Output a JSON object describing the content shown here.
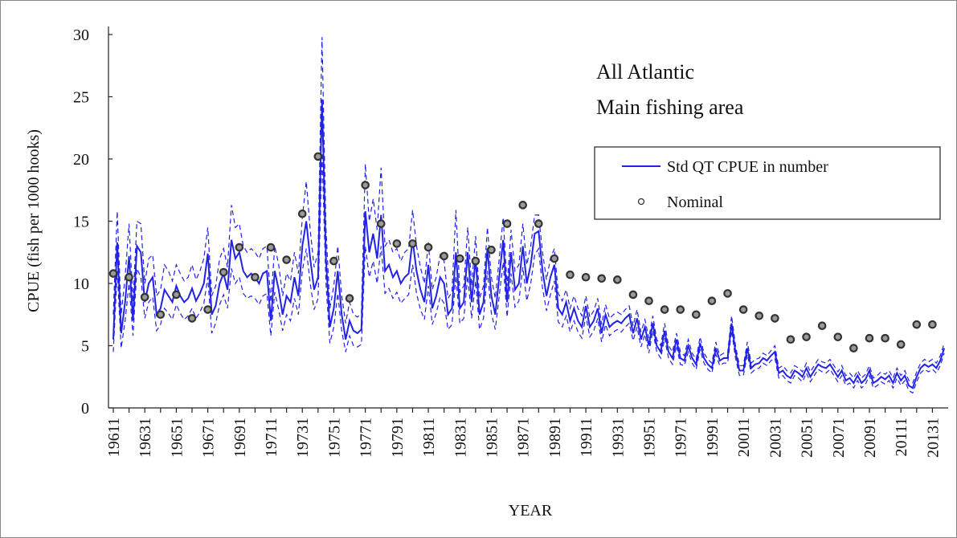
{
  "chart_data": {
    "type": "line",
    "annotations": [
      "All Atlantic",
      "Main fishing area"
    ],
    "xlabel": "YEAR",
    "ylabel": "CPUE (fish per 1000 hooks)",
    "ylim": [
      0,
      30
    ],
    "yticks": [
      0,
      5,
      10,
      15,
      20,
      25,
      30
    ],
    "grid": false,
    "legend": "upper right",
    "categories": [
      "19611",
      null,
      null,
      null,
      null,
      null,
      null,
      null,
      "19631",
      null,
      null,
      null,
      null,
      null,
      null,
      null,
      "19651",
      null,
      null,
      null,
      null,
      null,
      null,
      null,
      "19671",
      null,
      null,
      null,
      null,
      null,
      null,
      null,
      "19691",
      null,
      null,
      null,
      null,
      null,
      null,
      null,
      "19711",
      null,
      null,
      null,
      null,
      null,
      null,
      null,
      "19731",
      null,
      null,
      null,
      null,
      null,
      null,
      null,
      "19751",
      null,
      null,
      null,
      null,
      null,
      null,
      null,
      "19771",
      null,
      null,
      null,
      null,
      null,
      null,
      null,
      "19791",
      null,
      null,
      null,
      null,
      null,
      null,
      null,
      "19811",
      null,
      null,
      null,
      null,
      null,
      null,
      null,
      "19831",
      null,
      null,
      null,
      null,
      null,
      null,
      null,
      "19851",
      null,
      null,
      null,
      null,
      null,
      null,
      null,
      "19871",
      null,
      null,
      null,
      null,
      null,
      null,
      null,
      "19891",
      null,
      null,
      null,
      null,
      null,
      null,
      null,
      "19911",
      null,
      null,
      null,
      null,
      null,
      null,
      null,
      "19931",
      null,
      null,
      null,
      null,
      null,
      null,
      null,
      "19951",
      null,
      null,
      null,
      null,
      null,
      null,
      null,
      "19971",
      null,
      null,
      null,
      null,
      null,
      null,
      null,
      "19991",
      null,
      null,
      null,
      null,
      null,
      null,
      null,
      "20011",
      null,
      null,
      null,
      null,
      null,
      null,
      null,
      "20031",
      null,
      null,
      null,
      null,
      null,
      null,
      null,
      "20051",
      null,
      null,
      null,
      null,
      null,
      null,
      null,
      "20071",
      null,
      null,
      null,
      null,
      null,
      null,
      null,
      "20091",
      null,
      null,
      null,
      null,
      null,
      null,
      null,
      "20111",
      null,
      null,
      null,
      null,
      null,
      null,
      null,
      "20131",
      null,
      null,
      null
    ],
    "series": [
      {
        "name": "Std QT CPUE in number",
        "color": "#2222e6",
        "dash": false,
        "values": [
          5.5,
          13.3,
          6.0,
          8.5,
          12.2,
          7.0,
          13.0,
          12.5,
          8.5,
          10.0,
          10.5,
          7.5,
          8.0,
          9.5,
          9.0,
          8.5,
          9.8,
          9.0,
          8.5,
          8.8,
          9.6,
          8.6,
          9.2,
          10.0,
          12.4,
          7.5,
          8.2,
          10.0,
          10.8,
          9.5,
          13.5,
          12.0,
          12.5,
          11.0,
          10.5,
          10.8,
          10.5,
          10.0,
          10.8,
          11.0,
          7.0,
          11.0,
          9.5,
          7.5,
          9.0,
          8.5,
          10.5,
          9.0,
          13.0,
          15.0,
          12.0,
          9.5,
          10.5,
          24.8,
          12.0,
          6.5,
          8.0,
          11.0,
          7.5,
          5.5,
          7.0,
          6.2,
          6.0,
          6.3,
          15.8,
          12.5,
          14.0,
          12.0,
          15.5,
          11.0,
          11.5,
          10.5,
          11.0,
          10.0,
          10.5,
          10.8,
          13.5,
          11.0,
          9.5,
          8.5,
          11.5,
          8.0,
          9.0,
          10.5,
          10.0,
          7.5,
          8.0,
          12.5,
          8.0,
          8.5,
          12.5,
          8.5,
          12.0,
          7.5,
          8.5,
          12.8,
          9.0,
          7.5,
          10.5,
          13.5,
          8.5,
          12.5,
          9.5,
          10.0,
          13.0,
          10.0,
          11.5,
          14.0,
          14.2,
          11.0,
          9.0,
          10.5,
          11.5,
          8.0,
          7.5,
          8.5,
          7.0,
          8.0,
          7.0,
          6.5,
          8.2,
          6.5,
          7.0,
          8.0,
          6.0,
          7.5,
          6.5,
          6.8,
          7.0,
          6.8,
          7.2,
          7.5,
          6.0,
          7.2,
          5.5,
          6.5,
          5.0,
          6.8,
          5.0,
          4.5,
          6.2,
          4.5,
          4.0,
          5.5,
          4.0,
          3.8,
          5.0,
          4.0,
          3.5,
          5.2,
          4.0,
          3.5,
          3.2,
          4.8,
          3.8,
          4.0,
          4.0,
          6.8,
          4.5,
          3.0,
          3.0,
          4.8,
          3.2,
          3.5,
          3.6,
          4.0,
          3.8,
          4.2,
          4.5,
          2.8,
          3.0,
          2.6,
          2.4,
          3.0,
          2.8,
          2.5,
          3.2,
          2.5,
          3.0,
          3.5,
          3.3,
          3.2,
          3.5,
          3.0,
          2.5,
          3.0,
          2.2,
          2.4,
          2.0,
          2.6,
          2.0,
          2.3,
          3.0,
          2.0,
          2.2,
          2.5,
          2.3,
          2.6,
          2.0,
          2.8,
          2.2,
          2.6,
          1.8,
          1.6,
          2.5,
          3.2,
          3.5,
          3.3,
          3.5,
          3.2,
          3.8,
          4.8
        ]
      },
      {
        "color": "#2222e6",
        "dash": true,
        "values": [
          7.5,
          15.8,
          7.5,
          10.5,
          14.8,
          8.5,
          15.0,
          14.8,
          10.0,
          12.0,
          12.3,
          9.0,
          9.5,
          11.5,
          11.0,
          10.2,
          11.5,
          10.8,
          10.2,
          10.5,
          11.5,
          10.3,
          11.0,
          12.0,
          14.5,
          9.0,
          9.8,
          12.0,
          12.8,
          11.3,
          16.3,
          14.5,
          14.8,
          13.0,
          12.5,
          12.8,
          12.5,
          12.0,
          12.8,
          13.0,
          8.5,
          13.0,
          11.5,
          9.0,
          10.8,
          10.2,
          12.5,
          10.8,
          15.3,
          18.2,
          14.3,
          11.3,
          12.5,
          29.8,
          14.5,
          8.0,
          9.8,
          13.0,
          9.0,
          6.8,
          8.5,
          7.5,
          7.3,
          7.6,
          19.6,
          15.0,
          16.8,
          14.3,
          19.3,
          13.0,
          13.5,
          12.5,
          12.8,
          11.8,
          12.5,
          12.8,
          15.9,
          13.0,
          11.3,
          10.0,
          13.3,
          9.5,
          10.5,
          12.3,
          11.8,
          8.8,
          9.3,
          15.9,
          9.3,
          9.8,
          14.5,
          9.8,
          13.8,
          8.8,
          9.8,
          14.5,
          10.5,
          8.8,
          12.0,
          15.3,
          9.8,
          14.3,
          11.0,
          11.5,
          14.8,
          11.5,
          13.0,
          15.5,
          15.5,
          12.5,
          10.3,
          12.0,
          12.8,
          9.2,
          8.6,
          9.5,
          8.0,
          9.0,
          8.0,
          7.4,
          9.0,
          7.3,
          7.8,
          8.8,
          6.7,
          8.3,
          7.2,
          7.5,
          7.7,
          7.5,
          7.9,
          8.2,
          6.6,
          7.9,
          6.1,
          7.1,
          5.6,
          7.4,
          5.5,
          5.0,
          6.8,
          5.0,
          4.5,
          6.0,
          4.5,
          4.2,
          5.5,
          4.4,
          3.9,
          5.7,
          4.4,
          3.9,
          3.6,
          5.3,
          4.2,
          4.4,
          4.4,
          7.4,
          5.0,
          3.4,
          3.4,
          5.3,
          3.6,
          3.9,
          4.0,
          4.4,
          4.2,
          4.6,
          5.0,
          3.2,
          3.4,
          3.0,
          2.8,
          3.4,
          3.2,
          2.9,
          3.6,
          2.9,
          3.4,
          3.9,
          3.7,
          3.6,
          3.9,
          3.4,
          2.9,
          3.4,
          2.6,
          2.8,
          2.4,
          3.0,
          2.4,
          2.7,
          3.4,
          2.4,
          2.6,
          2.9,
          2.7,
          3.0,
          2.4,
          3.2,
          2.6,
          3.0,
          2.2,
          2.0,
          2.9,
          3.6,
          3.9,
          3.7,
          3.9,
          3.6,
          4.2,
          5.2
        ]
      },
      {
        "color": "#2222e6",
        "dash": true,
        "values": [
          4.5,
          11.0,
          4.8,
          7.0,
          10.0,
          5.8,
          11.2,
          10.5,
          7.2,
          8.5,
          8.9,
          6.2,
          6.7,
          8.0,
          7.6,
          7.1,
          8.3,
          7.6,
          7.1,
          7.4,
          8.0,
          7.2,
          7.7,
          8.4,
          10.5,
          6.0,
          6.8,
          8.3,
          9.1,
          8.0,
          11.2,
          10.0,
          10.5,
          9.2,
          8.8,
          9.0,
          8.8,
          8.3,
          9.0,
          9.2,
          5.8,
          9.3,
          7.9,
          6.2,
          7.5,
          7.0,
          8.8,
          7.5,
          11.0,
          12.8,
          10.0,
          7.9,
          8.8,
          20.5,
          10.0,
          5.2,
          6.5,
          9.2,
          6.2,
          4.5,
          5.8,
          5.0,
          4.9,
          5.1,
          13.0,
          10.5,
          11.8,
          10.0,
          13.0,
          9.2,
          9.6,
          8.8,
          9.3,
          8.4,
          8.8,
          9.1,
          11.5,
          9.2,
          7.9,
          7.1,
          9.8,
          6.7,
          7.6,
          8.9,
          8.4,
          6.3,
          6.7,
          10.6,
          6.8,
          7.2,
          10.6,
          7.2,
          10.2,
          6.3,
          7.2,
          11.0,
          7.6,
          6.3,
          9.0,
          11.7,
          7.3,
          10.8,
          8.1,
          8.6,
          11.3,
          8.6,
          10.0,
          12.3,
          12.8,
          9.6,
          7.8,
          9.1,
          10.2,
          6.9,
          6.5,
          7.4,
          6.1,
          7.0,
          6.1,
          5.6,
          7.4,
          5.7,
          6.2,
          7.2,
          5.3,
          6.7,
          5.8,
          6.1,
          6.3,
          6.1,
          6.5,
          6.8,
          5.4,
          6.5,
          4.9,
          5.9,
          4.4,
          6.2,
          4.5,
          4.0,
          5.6,
          4.0,
          3.5,
          5.0,
          3.5,
          3.4,
          4.5,
          3.6,
          3.1,
          4.7,
          3.6,
          3.1,
          2.8,
          4.3,
          3.4,
          3.6,
          3.6,
          6.2,
          4.0,
          2.6,
          2.6,
          4.3,
          2.8,
          3.1,
          3.2,
          3.6,
          3.4,
          3.8,
          4.0,
          2.4,
          2.6,
          2.2,
          2.0,
          2.6,
          2.4,
          2.1,
          2.8,
          2.1,
          2.6,
          3.1,
          2.9,
          2.8,
          3.1,
          2.6,
          2.1,
          2.6,
          1.8,
          2.0,
          1.6,
          2.2,
          1.6,
          1.9,
          2.6,
          1.6,
          1.8,
          2.1,
          1.9,
          2.2,
          1.6,
          2.4,
          1.8,
          2.2,
          1.4,
          1.2,
          2.1,
          2.8,
          3.1,
          2.9,
          3.1,
          2.8,
          3.4,
          4.4
        ]
      },
      {
        "name": "Nominal",
        "color": "#333333",
        "marker": "circle",
        "values": [
          10.8,
          null,
          null,
          null,
          10.5,
          null,
          null,
          null,
          8.9,
          null,
          null,
          null,
          7.5,
          null,
          null,
          null,
          9.1,
          null,
          null,
          null,
          7.2,
          null,
          null,
          null,
          7.9,
          null,
          null,
          null,
          10.9,
          null,
          null,
          null,
          12.9,
          null,
          null,
          null,
          10.5,
          null,
          null,
          null,
          12.9,
          null,
          null,
          null,
          11.9,
          null,
          null,
          null,
          15.6,
          null,
          null,
          null,
          20.2,
          null,
          null,
          null,
          11.8,
          null,
          null,
          null,
          8.8,
          null,
          null,
          null,
          17.9,
          null,
          null,
          null,
          14.8,
          null,
          null,
          null,
          13.2,
          null,
          null,
          null,
          13.2,
          null,
          null,
          null,
          12.9,
          null,
          null,
          null,
          12.2,
          null,
          null,
          null,
          12.0,
          null,
          null,
          null,
          11.8,
          null,
          null,
          null,
          12.7,
          null,
          null,
          null,
          14.8,
          null,
          null,
          null,
          16.3,
          null,
          null,
          null,
          14.8,
          null,
          null,
          null,
          12.0,
          null,
          null,
          null,
          10.7,
          null,
          null,
          null,
          10.5,
          null,
          null,
          null,
          10.4,
          null,
          null,
          null,
          10.3,
          null,
          null,
          null,
          9.1,
          null,
          null,
          null,
          8.6,
          null,
          null,
          null,
          7.9,
          null,
          null,
          null,
          7.9,
          null,
          null,
          null,
          7.5,
          null,
          null,
          null,
          8.6,
          null,
          null,
          null,
          9.2,
          null,
          null,
          null,
          7.9,
          null,
          null,
          null,
          7.4,
          null,
          null,
          null,
          7.2,
          null,
          null,
          null,
          5.5,
          null,
          null,
          null,
          5.7,
          null,
          null,
          null,
          6.6,
          null,
          null,
          null,
          5.7,
          null,
          null,
          null,
          4.8,
          null,
          null,
          null,
          5.6,
          null,
          null,
          null,
          5.6,
          null,
          null,
          null,
          5.1,
          null,
          null,
          null,
          6.7,
          null,
          null,
          null,
          6.7,
          null,
          null,
          null
        ]
      }
    ]
  }
}
